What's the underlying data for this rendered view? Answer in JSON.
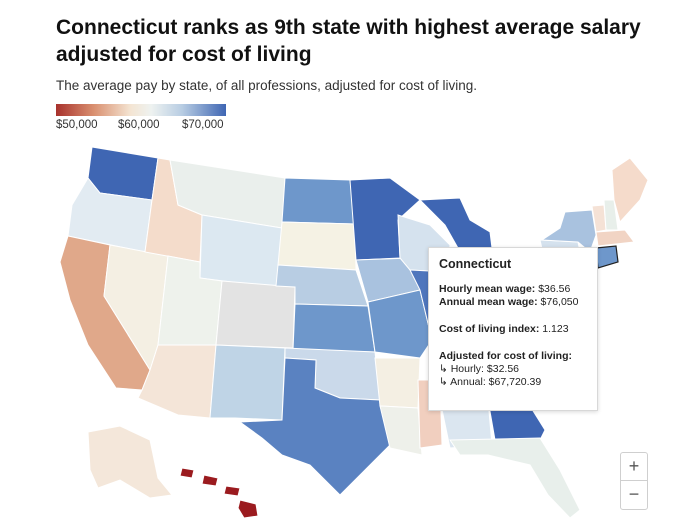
{
  "title": "Connecticut ranks as 9th state with highest average salary adjusted for cost of living",
  "subtitle": "The average pay by state, of all professions, adjusted for cost of living.",
  "legend": {
    "labels": [
      "$50,000",
      "$60,000",
      "$70,000"
    ],
    "colors": {
      "low": "#a8322d",
      "mid": "#eef2f0",
      "high": "#3f66b3"
    }
  },
  "tooltip": {
    "state": "Connecticut",
    "hourly_mean_wage_label": "Hourly mean wage:",
    "hourly_mean_wage": "$36.56",
    "annual_mean_wage_label": "Annual mean wage:",
    "annual_mean_wage": "$76,050",
    "col_index_label": "Cost of living index:",
    "col_index": "1.123",
    "adjusted_label": "Adjusted for cost of living:",
    "adj_hourly_label": "↳ Hourly:",
    "adj_hourly": "$32.56",
    "adj_annual_label": "↳ Annual:",
    "adj_annual": "$67,720.39"
  },
  "zoom": {
    "in_label": "+",
    "out_label": "−"
  },
  "state_colors": {
    "washington": "#3f66b3",
    "oregon": "#e2ebf2",
    "california": "#e0a88a",
    "nevada": "#f4efe3",
    "idaho": "#f4dccb",
    "montana": "#eaefec",
    "wyoming": "#dce8f1",
    "utah": "#eef2ec",
    "arizona": "#f4e5d8",
    "colorado": "#e3e3e3",
    "new_mexico": "#bfd4e6",
    "north_dakota": "#6e97cb",
    "south_dakota": "#f5f2e4",
    "nebraska": "#b8cde3",
    "kansas": "#6e97cb",
    "oklahoma": "#cad9ea",
    "texas": "#5a82c1",
    "minnesota": "#3f66b3",
    "iowa": "#a9c2df",
    "missouri": "#6e97cb",
    "arkansas": "#f4efe3",
    "louisiana": "#eef0ea",
    "mississippi": "#f1cfbf",
    "wisconsin": "#d5e2ee",
    "illinois": "#4f76bd",
    "michigan": "#3f66b3",
    "indiana": "#eef2f0",
    "alabama": "#dbe6f0",
    "georgia": "#3f66b3",
    "florida": "#e8efeb",
    "new_york": "#a9c2df",
    "pennsylvania": "#d5e2ee",
    "maine": "#f5dbcb",
    "vermont": "#f5e2d6",
    "new_hampshire": "#e8efea",
    "massachusetts": "#f1d4c4",
    "connecticut": "#6e97cb",
    "alaska": "#f4e7da",
    "hawaii": "#9b1b1f"
  }
}
